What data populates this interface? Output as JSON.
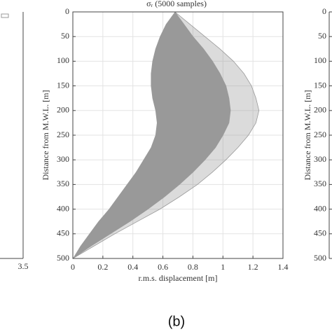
{
  "chart_data": [
    {
      "type": "area",
      "title": "σᵣ (5000 samples)",
      "xlabel": "r.m.s. displacement [m]",
      "ylabel": "Distance from M.W.L. [m]",
      "y": [
        0,
        25,
        50,
        75,
        100,
        125,
        150,
        175,
        200,
        225,
        250,
        275,
        300,
        325,
        350,
        375,
        400,
        425,
        450,
        475,
        500
      ],
      "lower": [
        0.68,
        0.62,
        0.58,
        0.55,
        0.53,
        0.52,
        0.52,
        0.53,
        0.55,
        0.56,
        0.55,
        0.52,
        0.47,
        0.42,
        0.36,
        0.3,
        0.24,
        0.17,
        0.11,
        0.05,
        0
      ],
      "core": [
        0.68,
        0.74,
        0.8,
        0.87,
        0.93,
        0.98,
        1.02,
        1.04,
        1.05,
        1.04,
        1.0,
        0.95,
        0.88,
        0.8,
        0.71,
        0.61,
        0.5,
        0.38,
        0.25,
        0.12,
        0
      ],
      "upper": [
        0.68,
        0.78,
        0.88,
        0.98,
        1.07,
        1.14,
        1.19,
        1.22,
        1.24,
        1.22,
        1.17,
        1.1,
        1.02,
        0.93,
        0.83,
        0.71,
        0.58,
        0.43,
        0.28,
        0.14,
        0
      ],
      "color": "#999999",
      "xlim": [
        0,
        1.4
      ],
      "xticks": [
        0,
        0.2,
        0.4,
        0.6,
        0.8,
        1,
        1.2,
        1.4
      ],
      "ylim": [
        0,
        500
      ],
      "yticks": [
        0,
        50,
        100,
        150,
        200,
        250,
        300,
        350,
        400,
        450,
        500
      ],
      "y_inverted": true,
      "grid": true
    },
    {
      "type": "line",
      "ylabel": "Distance from M.W.L. [m]",
      "ylim": [
        0,
        500
      ],
      "yticks": [
        0,
        50,
        100,
        150,
        200,
        250,
        300,
        350,
        400,
        450,
        500
      ],
      "y_inverted": true
    }
  ],
  "left_fragment_tick": "3.5",
  "caption": "(b)"
}
